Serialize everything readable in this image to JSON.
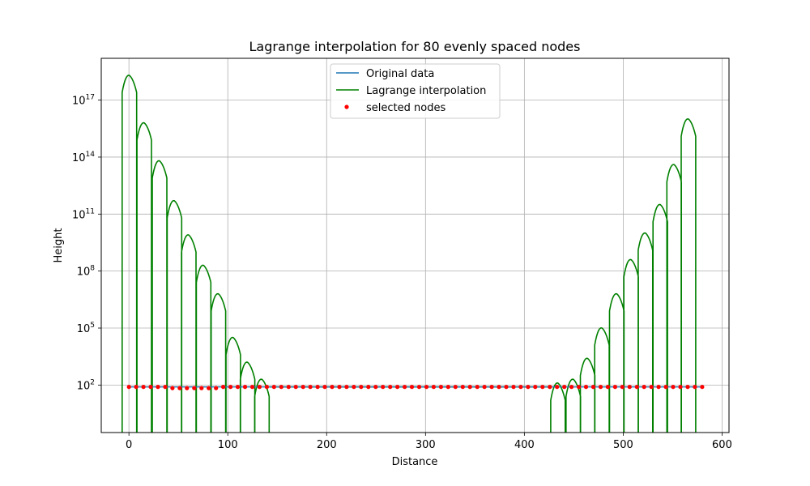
{
  "chart_data": {
    "type": "line",
    "title": "Lagrange interpolation for 80 evenly spaced nodes",
    "xlabel": "Distance",
    "ylabel": "Height",
    "xlim": [
      -28,
      607
    ],
    "ylim_log10": [
      -0.5,
      19.2
    ],
    "yscale": "log",
    "grid": true,
    "legend_position": "top-center",
    "x_ticks": [
      {
        "value": 0,
        "label": "0"
      },
      {
        "value": 100,
        "label": "100"
      },
      {
        "value": 200,
        "label": "200"
      },
      {
        "value": 300,
        "label": "300"
      },
      {
        "value": 400,
        "label": "400"
      },
      {
        "value": 500,
        "label": "500"
      },
      {
        "value": 600,
        "label": "600"
      }
    ],
    "y_ticks": [
      {
        "exp": 2,
        "base": "10",
        "sup": "2"
      },
      {
        "exp": 5,
        "base": "10",
        "sup": "5"
      },
      {
        "exp": 8,
        "base": "10",
        "sup": "8"
      },
      {
        "exp": 11,
        "base": "10",
        "sup": "11"
      },
      {
        "exp": 14,
        "base": "10",
        "sup": "14"
      },
      {
        "exp": 17,
        "base": "10",
        "sup": "17"
      }
    ],
    "series": [
      {
        "name": "Original data",
        "kind": "line",
        "color": "#1f77b4"
      },
      {
        "name": "Lagrange interpolation",
        "kind": "line",
        "color": "#008000"
      },
      {
        "name": "selected nodes",
        "kind": "scatter",
        "color": "#ff0000"
      }
    ],
    "node_spacing": 7.34,
    "node_count": 80,
    "node_log10_height": 1.9,
    "lobe_peaks_log10": {
      "left": [
        [
          0.5,
          18.3
        ],
        [
          15.5,
          15.8
        ],
        [
          31,
          13.8
        ],
        [
          46,
          11.7
        ],
        [
          60.5,
          9.9
        ],
        [
          75.5,
          8.3
        ],
        [
          90.5,
          6.8
        ],
        [
          105.5,
          4.5
        ],
        [
          120,
          3.2
        ],
        [
          134.5,
          2.3
        ]
      ],
      "right": [
        [
          434,
          2.1
        ],
        [
          449.5,
          2.3
        ],
        [
          464,
          3.4
        ],
        [
          478.5,
          5.0
        ],
        [
          493.5,
          6.8
        ],
        [
          508,
          8.6
        ],
        [
          522.5,
          10.0
        ],
        [
          537.5,
          11.5
        ],
        [
          551.5,
          13.6
        ],
        [
          566,
          16.0
        ]
      ]
    }
  }
}
